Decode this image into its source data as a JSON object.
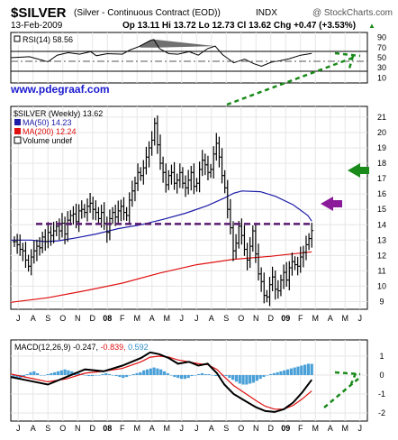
{
  "header": {
    "symbol": "$SILVER",
    "name": "(Silver - Continuous Contract (EOD))",
    "exchange": "INDX",
    "watermark": "@ StockCharts.com",
    "date": "13-Feb-2009",
    "quote": "Op 13.11  Hi 13.72  Lo 12.73  Cl 13.62  Chg +0.47 (+3.53%)",
    "quote_arrow": "▲"
  },
  "site": "www.pdegraaf.com",
  "colors": {
    "price_bar": "#000000",
    "ma50": "#1c1ca8",
    "ma200": "#e01010",
    "resistance": "#5a1a70",
    "purple_arrow": "#8a1a9a",
    "green_arrow": "#1a8a1a",
    "trend": "#1a8a1a",
    "macd_hist": "#4aa0d8",
    "rsi_fill": "#707070",
    "grid": "#e6e6e6"
  },
  "x_axis_labels": [
    "J",
    "A",
    "S",
    "O",
    "N",
    "D",
    "08",
    "F",
    "M",
    "A",
    "M",
    "J",
    "J",
    "A",
    "S",
    "O",
    "N",
    "D",
    "09",
    "F",
    "M",
    "A",
    "M",
    "J"
  ],
  "rsi_panel": {
    "label": "RSI(14) 58.56",
    "ticks": [
      "90",
      "70",
      "50",
      "30",
      "10"
    ]
  },
  "price_panel": {
    "label": "$SILVER (Weekly) 13.62",
    "ticks": [
      "21",
      "20",
      "19",
      "18",
      "17",
      "16",
      "15",
      "14",
      "13",
      "12",
      "11",
      "10",
      "9"
    ],
    "legend": [
      {
        "text": "MA(50) 14.23",
        "color": "#1c1ca8"
      },
      {
        "text": "MA(200) 12.24",
        "color": "#e01010"
      },
      {
        "text": "Volume undef",
        "color": "#ffffff"
      }
    ]
  },
  "macd_panel": {
    "label_main": "MACD(12,26,9) -0.247,",
    "label_signal": "-0.839,",
    "label_hist": "0.592",
    "ticks": [
      "1",
      "0",
      "-1",
      "-2"
    ]
  },
  "chart_data": {
    "type": "ohlc",
    "title": "$SILVER (Silver - Continuous Contract (EOD)) INDX",
    "date": "13-Feb-2009",
    "last": {
      "open": 13.11,
      "high": 13.72,
      "low": 12.73,
      "close": 13.62,
      "change": 0.47,
      "change_pct": 3.53
    },
    "ylim": [
      8.5,
      21.7
    ],
    "resistance_level": 14.05,
    "weekly_close": [
      12.9,
      12.7,
      12.4,
      12.3,
      11.7,
      11.3,
      11.9,
      12.3,
      12.6,
      12.5,
      13.2,
      12.9,
      13.5,
      13.3,
      13.6,
      13.9,
      13.6,
      14.1,
      13.4,
      14.3,
      14.6,
      14.7,
      14.2,
      14.9,
      15.0,
      14.8,
      15.2,
      15.4,
      15.0,
      14.8,
      14.4,
      14.8,
      14.1,
      13.5,
      14.4,
      14.8,
      14.5,
      14.9,
      15.2,
      14.8,
      14.6,
      15.6,
      16.2,
      16.7,
      17.4,
      17.2,
      17.7,
      18.4,
      19.0,
      19.5,
      20.6,
      19.2,
      18.0,
      17.4,
      16.6,
      17.2,
      17.4,
      16.7,
      16.9,
      17.4,
      16.7,
      16.4,
      16.9,
      17.4,
      16.5,
      16.7,
      17.6,
      18.2,
      17.9,
      17.4,
      17.6,
      18.6,
      19.3,
      18.4,
      17.2,
      16.4,
      15.0,
      13.8,
      12.3,
      12.8,
      13.9,
      13.3,
      12.4,
      11.7,
      12.6,
      13.6,
      12.1,
      10.8,
      10.3,
      9.4,
      9.3,
      10.1,
      10.6,
      9.8,
      9.7,
      10.4,
      10.9,
      10.4,
      11.2,
      11.6,
      11.4,
      11.3,
      11.9,
      12.2,
      12.7,
      13.1,
      13.62
    ],
    "ma50": [
      {
        "x": 0.0,
        "y": 13.0
      },
      {
        "x": 0.057,
        "y": 13.0
      },
      {
        "x": 0.097,
        "y": 12.9
      },
      {
        "x": 0.133,
        "y": 12.95
      },
      {
        "x": 0.185,
        "y": 13.15
      },
      {
        "x": 0.24,
        "y": 13.4
      },
      {
        "x": 0.302,
        "y": 13.75
      },
      {
        "x": 0.365,
        "y": 14.0
      },
      {
        "x": 0.427,
        "y": 14.35
      },
      {
        "x": 0.49,
        "y": 14.75
      },
      {
        "x": 0.552,
        "y": 15.25
      },
      {
        "x": 0.6,
        "y": 15.75
      },
      {
        "x": 0.625,
        "y": 16.05
      },
      {
        "x": 0.648,
        "y": 16.2
      },
      {
        "x": 0.7,
        "y": 16.15
      },
      {
        "x": 0.742,
        "y": 15.85
      },
      {
        "x": 0.792,
        "y": 15.3
      },
      {
        "x": 0.833,
        "y": 14.6
      },
      {
        "x": 0.844,
        "y": 14.23
      }
    ],
    "ma200": [
      {
        "x": 0.0,
        "y": 8.95
      },
      {
        "x": 0.104,
        "y": 9.25
      },
      {
        "x": 0.208,
        "y": 9.7
      },
      {
        "x": 0.313,
        "y": 10.2
      },
      {
        "x": 0.417,
        "y": 10.85
      },
      {
        "x": 0.521,
        "y": 11.4
      },
      {
        "x": 0.625,
        "y": 11.75
      },
      {
        "x": 0.73,
        "y": 11.95
      },
      {
        "x": 0.844,
        "y": 12.24
      }
    ],
    "rsi": [
      {
        "x": 0.0,
        "y": 50
      },
      {
        "x": 0.052,
        "y": 52
      },
      {
        "x": 0.104,
        "y": 42
      },
      {
        "x": 0.13,
        "y": 55
      },
      {
        "x": 0.161,
        "y": 60
      },
      {
        "x": 0.193,
        "y": 57
      },
      {
        "x": 0.224,
        "y": 62
      },
      {
        "x": 0.24,
        "y": 54
      },
      {
        "x": 0.271,
        "y": 58
      },
      {
        "x": 0.313,
        "y": 57
      },
      {
        "x": 0.333,
        "y": 65
      },
      {
        "x": 0.359,
        "y": 72
      },
      {
        "x": 0.375,
        "y": 78
      },
      {
        "x": 0.391,
        "y": 84
      },
      {
        "x": 0.401,
        "y": 86
      },
      {
        "x": 0.417,
        "y": 68
      },
      {
        "x": 0.443,
        "y": 58
      },
      {
        "x": 0.469,
        "y": 57
      },
      {
        "x": 0.5,
        "y": 62
      },
      {
        "x": 0.526,
        "y": 55
      },
      {
        "x": 0.552,
        "y": 68
      },
      {
        "x": 0.573,
        "y": 73
      },
      {
        "x": 0.594,
        "y": 56
      },
      {
        "x": 0.625,
        "y": 40
      },
      {
        "x": 0.656,
        "y": 47
      },
      {
        "x": 0.682,
        "y": 38
      },
      {
        "x": 0.703,
        "y": 33
      },
      {
        "x": 0.73,
        "y": 41
      },
      {
        "x": 0.755,
        "y": 44
      },
      {
        "x": 0.781,
        "y": 48
      },
      {
        "x": 0.813,
        "y": 55
      },
      {
        "x": 0.844,
        "y": 58.56
      }
    ],
    "macd": [
      {
        "x": 0.0,
        "y": -0.1
      },
      {
        "x": 0.052,
        "y": -0.3
      },
      {
        "x": 0.104,
        "y": -0.5
      },
      {
        "x": 0.156,
        "y": -0.1
      },
      {
        "x": 0.208,
        "y": 0.3
      },
      {
        "x": 0.26,
        "y": 0.2
      },
      {
        "x": 0.313,
        "y": 0.5
      },
      {
        "x": 0.365,
        "y": 0.9
      },
      {
        "x": 0.391,
        "y": 1.2
      },
      {
        "x": 0.417,
        "y": 1.1
      },
      {
        "x": 0.443,
        "y": 0.9
      },
      {
        "x": 0.469,
        "y": 0.6
      },
      {
        "x": 0.5,
        "y": 0.7
      },
      {
        "x": 0.526,
        "y": 0.5
      },
      {
        "x": 0.552,
        "y": 0.6
      },
      {
        "x": 0.578,
        "y": 0.1
      },
      {
        "x": 0.599,
        "y": -0.5
      },
      {
        "x": 0.625,
        "y": -1.0
      },
      {
        "x": 0.656,
        "y": -1.35
      },
      {
        "x": 0.688,
        "y": -1.7
      },
      {
        "x": 0.714,
        "y": -1.9
      },
      {
        "x": 0.74,
        "y": -1.95
      },
      {
        "x": 0.766,
        "y": -1.8
      },
      {
        "x": 0.792,
        "y": -1.45
      },
      {
        "x": 0.818,
        "y": -0.9
      },
      {
        "x": 0.844,
        "y": -0.247
      }
    ],
    "signal": [
      {
        "x": 0.0,
        "y": 0.05
      },
      {
        "x": 0.052,
        "y": -0.15
      },
      {
        "x": 0.104,
        "y": -0.35
      },
      {
        "x": 0.156,
        "y": -0.2
      },
      {
        "x": 0.208,
        "y": 0.1
      },
      {
        "x": 0.26,
        "y": 0.2
      },
      {
        "x": 0.313,
        "y": 0.35
      },
      {
        "x": 0.365,
        "y": 0.7
      },
      {
        "x": 0.391,
        "y": 0.95
      },
      {
        "x": 0.417,
        "y": 1.0
      },
      {
        "x": 0.443,
        "y": 0.95
      },
      {
        "x": 0.469,
        "y": 0.8
      },
      {
        "x": 0.5,
        "y": 0.7
      },
      {
        "x": 0.526,
        "y": 0.6
      },
      {
        "x": 0.552,
        "y": 0.55
      },
      {
        "x": 0.578,
        "y": 0.3
      },
      {
        "x": 0.599,
        "y": -0.1
      },
      {
        "x": 0.625,
        "y": -0.55
      },
      {
        "x": 0.656,
        "y": -0.95
      },
      {
        "x": 0.688,
        "y": -1.35
      },
      {
        "x": 0.714,
        "y": -1.65
      },
      {
        "x": 0.74,
        "y": -1.8
      },
      {
        "x": 0.766,
        "y": -1.8
      },
      {
        "x": 0.792,
        "y": -1.6
      },
      {
        "x": 0.818,
        "y": -1.25
      },
      {
        "x": 0.844,
        "y": -0.839
      }
    ],
    "hist": [
      -0.15,
      -0.2,
      -0.15,
      -0.1,
      0.05,
      0.15,
      0.2,
      0.1,
      0.0,
      0.0,
      0.05,
      0.1,
      0.15,
      0.2,
      0.25,
      0.3,
      0.25,
      0.2,
      0.15,
      0.1,
      0.05,
      0.0,
      -0.05,
      -0.05,
      0.0,
      0.0,
      0.05,
      0.1,
      0.05,
      0.0,
      -0.05,
      -0.1,
      -0.15,
      -0.1,
      0.0,
      0.05,
      0.1,
      0.15,
      0.25,
      0.3,
      0.35,
      0.4,
      0.35,
      0.3,
      0.2,
      0.1,
      0.0,
      -0.1,
      -0.15,
      -0.2,
      -0.2,
      -0.15,
      -0.05,
      0.0,
      0.05,
      0.1,
      0.05,
      0.05,
      0.0,
      -0.05,
      0.0,
      0.0,
      -0.05,
      -0.15,
      -0.25,
      -0.35,
      -0.45,
      -0.5,
      -0.5,
      -0.45,
      -0.4,
      -0.3,
      -0.2,
      -0.1,
      0.0,
      0.05,
      0.1,
      0.15,
      0.2,
      0.25,
      0.3,
      0.35,
      0.4,
      0.45,
      0.5,
      0.55,
      0.6,
      0.592
    ]
  }
}
